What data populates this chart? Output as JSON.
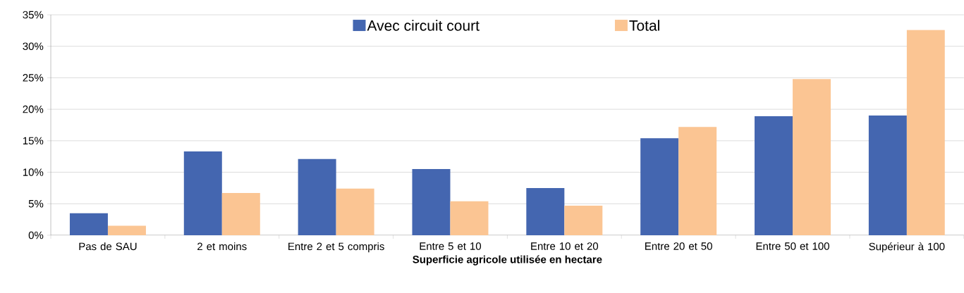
{
  "chart_data": {
    "type": "bar",
    "xlabel": "Superficie agricole utilisée en hectare",
    "categories": [
      "Pas de SAU",
      "2 et moins",
      "Entre 2 et 5 compris",
      "Entre 5 et 10",
      "Entre 10 et 20",
      "Entre 20 et 50",
      "Entre 50 et 100",
      "Supérieur à 100"
    ],
    "series": [
      {
        "name": "Avec circuit court",
        "color": "#4466b0",
        "values": [
          3.5,
          13.3,
          12.1,
          10.5,
          7.5,
          15.4,
          18.9,
          19.0
        ]
      },
      {
        "name": "Total",
        "color": "#fbc593",
        "values": [
          1.5,
          6.7,
          7.4,
          5.4,
          4.7,
          17.2,
          24.8,
          32.6
        ]
      }
    ],
    "ylim": [
      0,
      35
    ],
    "yticks": [
      {
        "value": 0,
        "label": "0%"
      },
      {
        "value": 5,
        "label": "5%"
      },
      {
        "value": 10,
        "label": "10%"
      },
      {
        "value": 15,
        "label": "15%"
      },
      {
        "value": 20,
        "label": "20%"
      },
      {
        "value": 25,
        "label": "25%"
      },
      {
        "value": 30,
        "label": "30%"
      },
      {
        "value": 35,
        "label": "35%"
      }
    ],
    "grid": "y",
    "legend": "top"
  }
}
